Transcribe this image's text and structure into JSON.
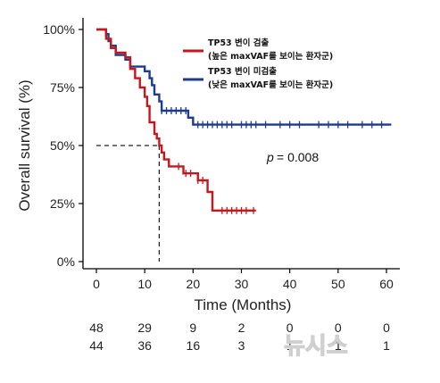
{
  "chart_data": {
    "type": "line",
    "subtype": "kaplan-meier",
    "title": "",
    "xlabel": "Time (Months)",
    "ylabel": "Overall survival (%)",
    "xlim": [
      0,
      60
    ],
    "ylim": [
      0,
      100
    ],
    "xticks": [
      "0",
      "10",
      "20",
      "30",
      "40",
      "50",
      "60"
    ],
    "yticks": [
      "0%",
      "25%",
      "50%",
      "75%",
      "100%"
    ],
    "grid": false,
    "legend_position": "top-right",
    "annotation": {
      "p_label": "p",
      "p_value": "= 0.008"
    },
    "median_line": {
      "x": 13,
      "y": 50
    },
    "series": [
      {
        "name": "TP53 변이 검출",
        "subname": "(높은 maxVAF를 보이는 환자군)",
        "color": "#c8161d",
        "steps": [
          [
            0,
            100
          ],
          [
            2,
            96
          ],
          [
            3,
            92
          ],
          [
            4,
            90
          ],
          [
            6,
            88
          ],
          [
            7,
            83
          ],
          [
            8,
            79
          ],
          [
            9,
            75
          ],
          [
            10,
            71
          ],
          [
            10.5,
            67
          ],
          [
            11,
            60
          ],
          [
            12,
            55
          ],
          [
            12.5,
            53
          ],
          [
            13,
            50
          ],
          [
            13.5,
            47
          ],
          [
            14,
            44
          ],
          [
            15,
            41
          ],
          [
            18,
            38
          ],
          [
            21,
            35
          ],
          [
            23,
            30
          ],
          [
            24,
            22
          ],
          [
            33,
            22
          ]
        ],
        "censor": [
          17,
          18.5,
          19.5,
          21,
          22,
          26,
          27,
          28,
          29,
          30,
          31,
          32.5
        ]
      },
      {
        "name": "TP53 변이 미검출",
        "subname": "(낮은 maxVAF를 보이는 환자군)",
        "color": "#1e3c8c",
        "steps": [
          [
            0,
            100
          ],
          [
            2,
            98
          ],
          [
            2.5,
            95
          ],
          [
            3,
            93
          ],
          [
            4,
            89
          ],
          [
            6,
            87
          ],
          [
            7,
            84
          ],
          [
            10,
            82
          ],
          [
            11,
            79
          ],
          [
            11.5,
            76
          ],
          [
            12,
            72
          ],
          [
            13,
            69
          ],
          [
            13.5,
            65
          ],
          [
            19,
            62
          ],
          [
            20,
            59
          ],
          [
            61,
            59
          ]
        ],
        "censor": [
          13.5,
          14.5,
          15.5,
          16.5,
          17.5,
          18.5,
          21,
          22,
          23,
          24,
          25,
          26,
          27,
          28,
          30,
          31,
          32,
          33,
          35,
          38,
          40,
          42,
          46,
          48,
          50,
          52,
          55,
          57,
          59
        ]
      }
    ],
    "risk_table": {
      "times": [
        0,
        10,
        20,
        30,
        40,
        50,
        60
      ],
      "rows": [
        [
          "48",
          "29",
          "9",
          "2",
          "0",
          "0",
          "0"
        ],
        [
          "44",
          "36",
          "16",
          "3",
          "1",
          "1",
          "1"
        ]
      ]
    }
  },
  "watermark": "뉴시스"
}
